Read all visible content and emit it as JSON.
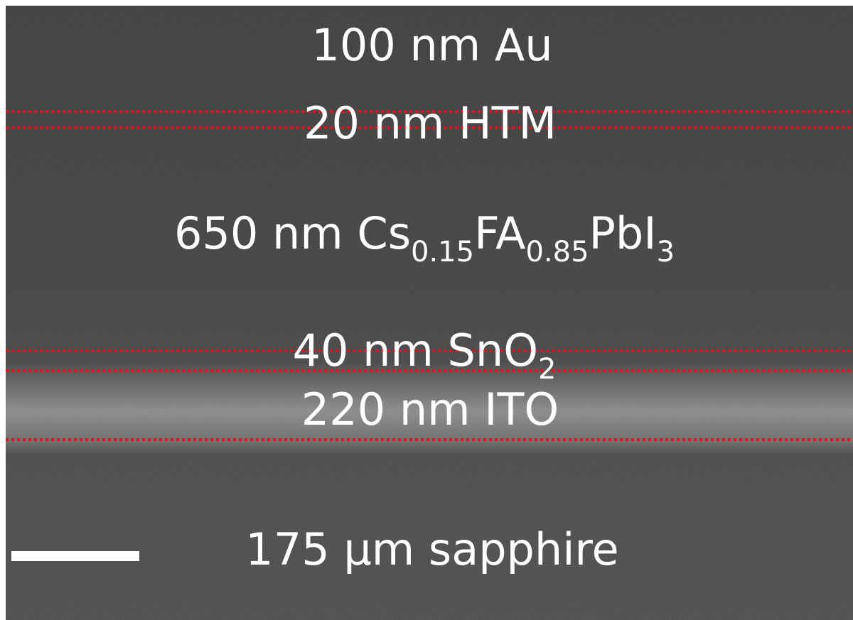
{
  "layers": [
    {
      "label": [
        {
          "text": "100 nm Au"
        }
      ]
    },
    {
      "label": [
        {
          "text": "20 nm HTM"
        }
      ]
    },
    {
      "label": [
        {
          "text": "650 nm Cs"
        },
        {
          "sub": "0.15"
        },
        {
          "text": "FA"
        },
        {
          "sub": "0.85"
        },
        {
          "text": "PbI"
        },
        {
          "sub": "3"
        }
      ]
    },
    {
      "label": [
        {
          "text": "40 nm SnO"
        },
        {
          "sub": "2"
        }
      ]
    },
    {
      "label": [
        {
          "text": "220 nm ITO"
        }
      ]
    },
    {
      "label": [
        {
          "text": "175 µm sapphire"
        }
      ]
    }
  ]
}
